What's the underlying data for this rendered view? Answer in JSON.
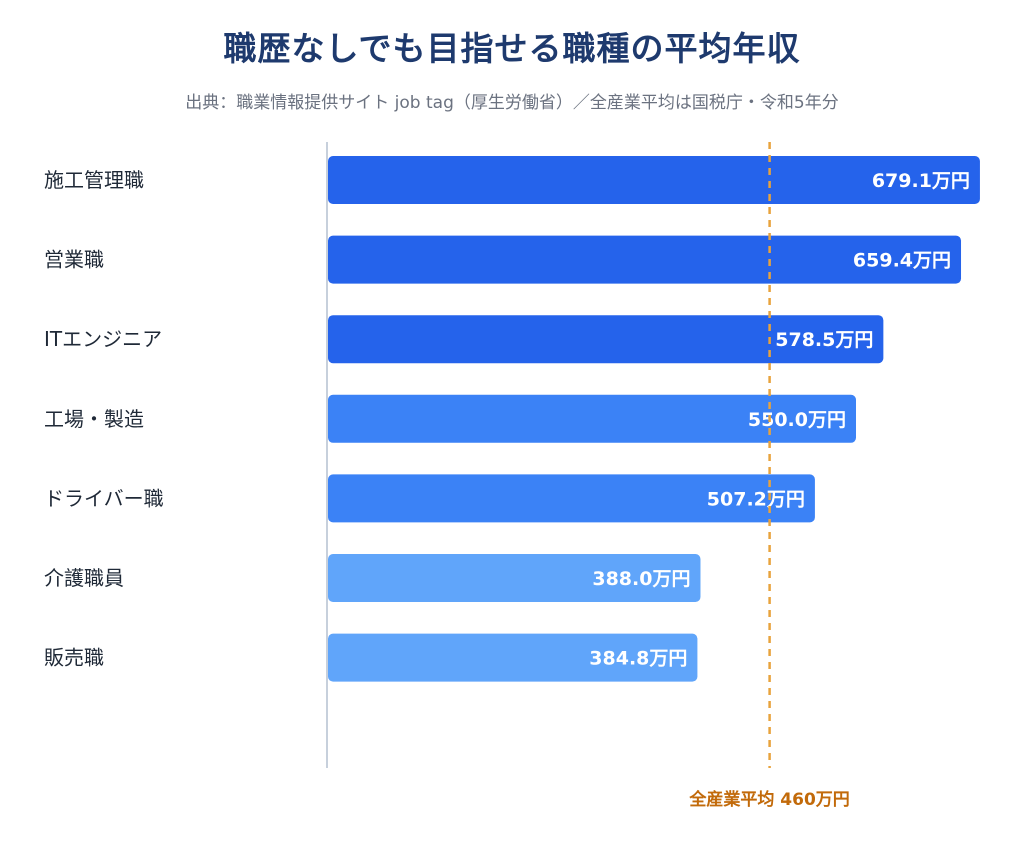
{
  "chart_data": {
    "type": "bar",
    "orientation": "horizontal",
    "title": "職歴なしでも目指せる職種の平均年収",
    "subtitle": "出典：職業情報提供サイト job tag（厚生労働省）／全産業平均は国税庁・令和5年分",
    "categories": [
      "施工管理職",
      "営業職",
      "ITエンジニア",
      "工場・製造",
      "ドライバー職",
      "介護職員",
      "販売職"
    ],
    "values": [
      679.1,
      659.4,
      578.5,
      550.0,
      507.2,
      388.0,
      384.8
    ],
    "value_labels": [
      "679.1万円",
      "659.4万円",
      "578.5万円",
      "550.0万円",
      "507.2万円",
      "388.0万円",
      "384.8万円"
    ],
    "bar_colors": [
      "#2563eb",
      "#2563eb",
      "#2563eb",
      "#3b82f6",
      "#3b82f6",
      "#60a5fa",
      "#60a5fa"
    ],
    "reference_line": {
      "value": 460,
      "label": "全産業平均 460万円",
      "color": "#e8a33d",
      "label_color": "#c26a0a"
    },
    "xlim": [
      0,
      700
    ],
    "grid": false,
    "axis_color": "#c7d0dc"
  }
}
